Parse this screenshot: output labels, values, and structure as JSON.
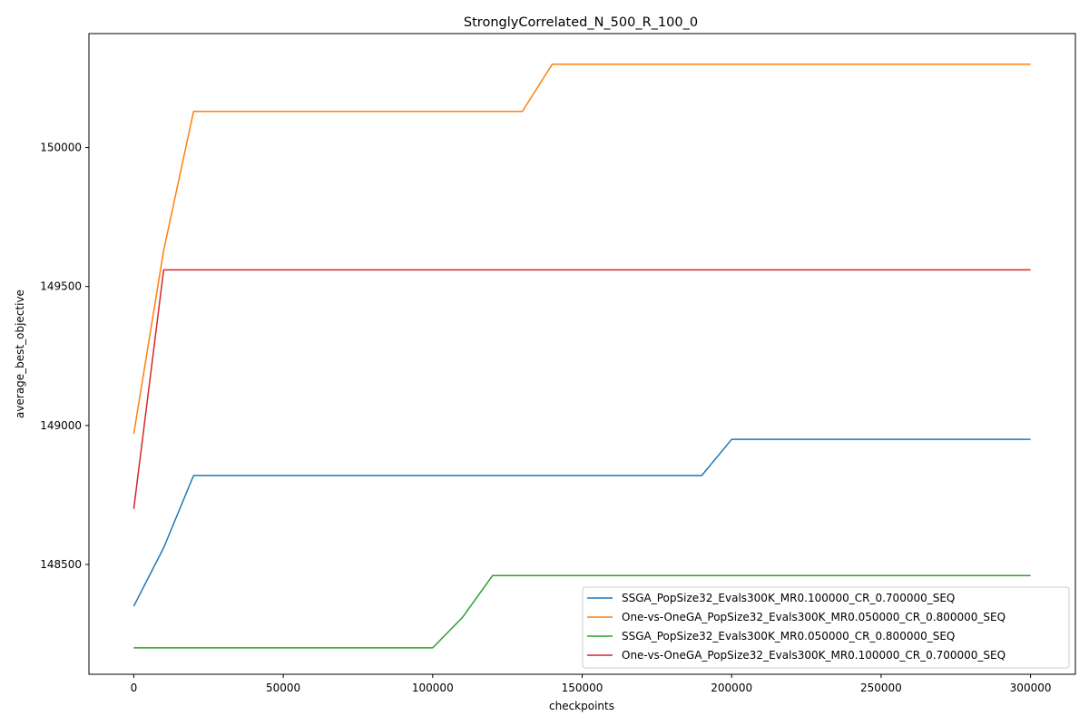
{
  "chart_data": {
    "type": "line",
    "title": "StronglyCorrelated_N_500_R_100_0",
    "xlabel": "checkpoints",
    "ylabel": "average_best_objective",
    "xlim": [
      -15000,
      315000
    ],
    "ylim": [
      148105,
      150410
    ],
    "x_ticks": [
      0,
      50000,
      100000,
      150000,
      200000,
      250000,
      300000
    ],
    "y_ticks": [
      148500,
      149000,
      149500,
      150000
    ],
    "grid": false,
    "legend_position": "lower-right",
    "x": [
      0,
      10000,
      20000,
      30000,
      40000,
      50000,
      60000,
      70000,
      80000,
      90000,
      100000,
      110000,
      120000,
      130000,
      140000,
      150000,
      160000,
      170000,
      180000,
      190000,
      200000,
      210000,
      220000,
      230000,
      240000,
      250000,
      260000,
      270000,
      280000,
      290000,
      300000
    ],
    "series": [
      {
        "name": "SSGA_PopSize32_Evals300K_MR0.100000_CR_0.700000_SEQ",
        "color": "#1f77b4",
        "values": [
          148350,
          148560,
          148820,
          148820,
          148820,
          148820,
          148820,
          148820,
          148820,
          148820,
          148820,
          148820,
          148820,
          148820,
          148820,
          148820,
          148820,
          148820,
          148820,
          148820,
          148950,
          148950,
          148950,
          148950,
          148950,
          148950,
          148950,
          148950,
          148950,
          148950,
          148950
        ]
      },
      {
        "name": "One-vs-OneGA_PopSize32_Evals300K_MR0.050000_CR_0.800000_SEQ",
        "color": "#ff7f0e",
        "values": [
          148970,
          149630,
          150130,
          150130,
          150130,
          150130,
          150130,
          150130,
          150130,
          150130,
          150130,
          150130,
          150130,
          150130,
          150300,
          150300,
          150300,
          150300,
          150300,
          150300,
          150300,
          150300,
          150300,
          150300,
          150300,
          150300,
          150300,
          150300,
          150300,
          150300,
          150300
        ]
      },
      {
        "name": "SSGA_PopSize32_Evals300K_MR0.050000_CR_0.800000_SEQ",
        "color": "#2ca02c",
        "values": [
          148200,
          148200,
          148200,
          148200,
          148200,
          148200,
          148200,
          148200,
          148200,
          148200,
          148200,
          148310,
          148460,
          148460,
          148460,
          148460,
          148460,
          148460,
          148460,
          148460,
          148460,
          148460,
          148460,
          148460,
          148460,
          148460,
          148460,
          148460,
          148460,
          148460,
          148460
        ]
      },
      {
        "name": "One-vs-OneGA_PopSize32_Evals300K_MR0.100000_CR_0.700000_SEQ",
        "color": "#d62728",
        "values": [
          148700,
          149560,
          149560,
          149560,
          149560,
          149560,
          149560,
          149560,
          149560,
          149560,
          149560,
          149560,
          149560,
          149560,
          149560,
          149560,
          149560,
          149560,
          149560,
          149560,
          149560,
          149560,
          149560,
          149560,
          149560,
          149560,
          149560,
          149560,
          149560,
          149560,
          149560
        ]
      }
    ]
  }
}
